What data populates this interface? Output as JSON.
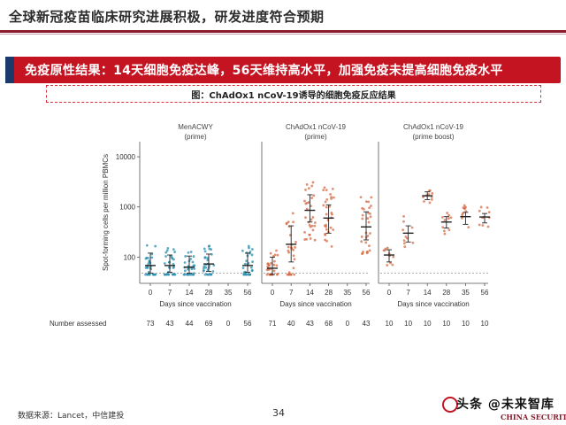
{
  "header": {
    "title": "全球新冠疫苗临床研究进展积极，研发进度符合预期"
  },
  "banner": {
    "text": "免疫原性结果：14天细胞免疫达峰，56天维持高水平，加强免疫未提高细胞免疫水平"
  },
  "figure": {
    "caption": "图：ChAdOx1 nCoV-19诱导的细胞免疫反应结果"
  },
  "footer": {
    "source": "数据来源：Lancet，中信建投",
    "page": "34"
  },
  "logo": {
    "cn": "头条 @未来智库",
    "en": "CHINA SECURITIES"
  },
  "chart_data": {
    "type": "scatter",
    "ylabel": "Spot-forming cells per million PBMCs",
    "xlabel": "Days since vaccination",
    "yscale": "log",
    "ylim": [
      30,
      20000
    ],
    "yticks": [
      100,
      1000,
      10000
    ],
    "ytick_labels": [
      "100",
      "1000",
      "10000"
    ],
    "row_label": "Number assessed",
    "panels": [
      {
        "title_line1": "MenACWY",
        "title_line2": "(prime)",
        "color": "#2a8fb0",
        "days": [
          "0",
          "7",
          "14",
          "28",
          "35",
          "56"
        ],
        "median": [
          68,
          68,
          63,
          73,
          null,
          68
        ],
        "q1": [
          48,
          50,
          48,
          52,
          null,
          50
        ],
        "q3": [
          120,
          110,
          105,
          115,
          null,
          120
        ],
        "n": [
          "73",
          "43",
          "44",
          "69",
          "0",
          "56"
        ]
      },
      {
        "title_line1": "ChAdOx1 nCoV-19",
        "title_line2": "(prime)",
        "color": "#d66b45",
        "days": [
          "0",
          "7",
          "14",
          "28",
          "35",
          "56"
        ],
        "median": [
          60,
          180,
          856,
          600,
          null,
          400
        ],
        "q1": [
          45,
          80,
          500,
          300,
          null,
          220
        ],
        "q3": [
          100,
          420,
          1750,
          1100,
          null,
          800
        ],
        "n": [
          "71",
          "40",
          "43",
          "68",
          "0",
          "43"
        ]
      },
      {
        "title_line1": "ChAdOx1 nCoV-19",
        "title_line2": "(prime boost)",
        "color": "#d66b45",
        "days": [
          "0",
          "7",
          "14",
          "28",
          "35",
          "56"
        ],
        "median": [
          110,
          300,
          1670,
          500,
          640,
          630
        ],
        "q1": [
          80,
          200,
          1400,
          380,
          450,
          480
        ],
        "q3": [
          140,
          420,
          2000,
          640,
          780,
          740
        ],
        "n": [
          "10",
          "10",
          "10",
          "10",
          "10",
          "10"
        ]
      }
    ],
    "threshold": 48
  }
}
